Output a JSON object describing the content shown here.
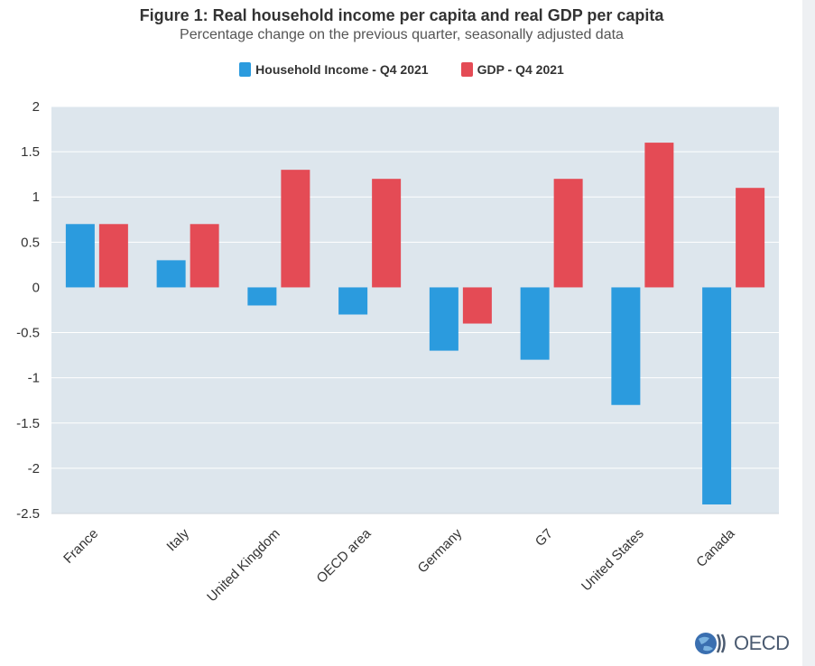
{
  "title": "Figure 1: Real household income per capita and real GDP per capita",
  "subtitle": "Percentage change on the previous quarter, seasonally adjusted data",
  "logo_text": "OECD",
  "colors": {
    "household": "#2b9bde",
    "gdp": "#e44b55",
    "plot_bg": "#dde6ed",
    "grid": "#ffffff"
  },
  "chart_data": {
    "type": "bar",
    "categories": [
      "France",
      "Italy",
      "United Kingdom",
      "OECD area",
      "Germany",
      "G7",
      "United States",
      "Canada"
    ],
    "series": [
      {
        "name": "Household Income - Q4 2021",
        "values": [
          0.7,
          0.3,
          -0.2,
          -0.3,
          -0.7,
          -0.8,
          -1.3,
          -2.4
        ]
      },
      {
        "name": "GDP - Q4 2021",
        "values": [
          0.7,
          0.7,
          1.3,
          1.2,
          -0.4,
          1.2,
          1.6,
          1.1
        ]
      }
    ],
    "y_ticks": [
      "2",
      "1.5",
      "1",
      "0.5",
      "0",
      "-0.5",
      "-1",
      "-1.5",
      "-2",
      "-2.5"
    ],
    "ylim": [
      -2.5,
      2
    ],
    "grid": true,
    "legend_position": "top-center"
  }
}
